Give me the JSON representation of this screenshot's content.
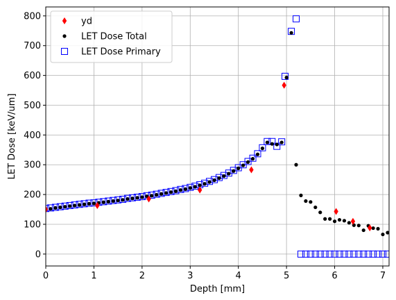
{
  "chart_data": {
    "type": "scatter",
    "title": "",
    "xlabel": "Depth [mm]",
    "ylabel": "LET Dose [keV/um]",
    "xlim": [
      0,
      7.13
    ],
    "ylim": [
      -40,
      830
    ],
    "xticks": [
      0,
      1,
      2,
      3,
      4,
      5,
      6,
      7
    ],
    "yticks": [
      0,
      100,
      200,
      300,
      400,
      500,
      600,
      700,
      800
    ],
    "grid": true,
    "legend_position": "upper-left",
    "series": [
      {
        "name": "yd",
        "marker": "diamond",
        "color": "#ff0000",
        "x": [
          0.0,
          1.07,
          2.14,
          3.2,
          4.27,
          4.95,
          6.03,
          6.38,
          6.73
        ],
        "y": [
          150,
          163,
          185,
          215,
          283,
          567,
          143,
          110,
          88
        ]
      },
      {
        "name": "LET Dose Total",
        "marker": "dot",
        "color": "#000000",
        "x": [
          0.0,
          0.1,
          0.2,
          0.3,
          0.4,
          0.5,
          0.6,
          0.7,
          0.8,
          0.9,
          1.0,
          1.1,
          1.2,
          1.3,
          1.4,
          1.5,
          1.6,
          1.7,
          1.8,
          1.9,
          2.0,
          2.1,
          2.2,
          2.3,
          2.4,
          2.5,
          2.6,
          2.7,
          2.8,
          2.9,
          3.0,
          3.1,
          3.2,
          3.3,
          3.4,
          3.5,
          3.6,
          3.7,
          3.8,
          3.9,
          4.0,
          4.1,
          4.2,
          4.3,
          4.4,
          4.5,
          4.6,
          4.7,
          4.8,
          4.9,
          5.0,
          5.1,
          5.2,
          5.3,
          5.4,
          5.5,
          5.6,
          5.7,
          5.8,
          5.9,
          6.0,
          6.1,
          6.2,
          6.3,
          6.4,
          6.5,
          6.6,
          6.7,
          6.8,
          6.9,
          7.0,
          7.1
        ],
        "y": [
          150,
          152,
          155,
          157,
          159,
          161,
          163,
          165,
          167,
          169,
          170,
          172,
          174,
          176,
          178,
          180,
          182,
          185,
          187,
          189,
          191,
          194,
          196,
          199,
          202,
          205,
          208,
          211,
          215,
          218,
          222,
          226,
          231,
          236,
          242,
          248,
          255,
          262,
          270,
          279,
          288,
          298,
          309,
          320,
          335,
          355,
          375,
          370,
          368,
          375,
          593,
          743,
          300,
          197,
          178,
          175,
          157,
          140,
          118,
          118,
          110,
          115,
          112,
          105,
          97,
          96,
          80,
          95,
          87,
          85,
          66,
          72
        ]
      },
      {
        "name": "LET Dose Primary",
        "marker": "square-open",
        "color": "#0000ff",
        "x": [
          0.0,
          0.1,
          0.2,
          0.3,
          0.4,
          0.5,
          0.6,
          0.7,
          0.8,
          0.9,
          1.0,
          1.1,
          1.2,
          1.3,
          1.4,
          1.5,
          1.6,
          1.7,
          1.8,
          1.9,
          2.0,
          2.1,
          2.2,
          2.3,
          2.4,
          2.5,
          2.6,
          2.7,
          2.8,
          2.9,
          3.0,
          3.1,
          3.2,
          3.3,
          3.4,
          3.5,
          3.6,
          3.7,
          3.8,
          3.9,
          4.0,
          4.1,
          4.2,
          4.3,
          4.4,
          4.5,
          4.6,
          4.7,
          4.8,
          4.9,
          4.97,
          5.1,
          5.2,
          5.3,
          5.4,
          5.5,
          5.6,
          5.7,
          5.8,
          5.9,
          6.0,
          6.1,
          6.2,
          6.3,
          6.4,
          6.5,
          6.6,
          6.7,
          6.8,
          6.9,
          7.0,
          7.1
        ],
        "y": [
          153,
          155,
          157,
          159,
          161,
          163,
          165,
          167,
          169,
          171,
          172,
          174,
          176,
          178,
          180,
          182,
          184,
          187,
          189,
          191,
          193,
          196,
          198,
          201,
          204,
          207,
          210,
          213,
          217,
          220,
          224,
          228,
          233,
          238,
          244,
          250,
          257,
          264,
          272,
          281,
          290,
          300,
          311,
          322,
          337,
          357,
          378,
          378,
          362,
          377,
          597,
          748,
          790,
          0,
          0,
          0,
          0,
          0,
          0,
          0,
          0,
          0,
          0,
          0,
          0,
          0,
          0,
          0,
          0,
          0,
          0,
          0
        ]
      }
    ]
  }
}
